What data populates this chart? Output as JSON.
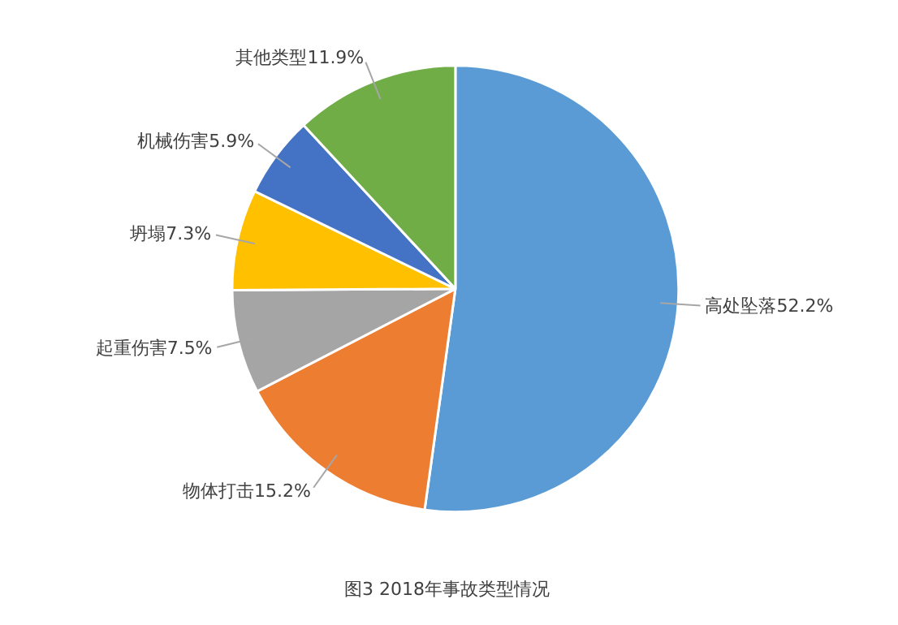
{
  "chart_data": {
    "type": "pie",
    "title": "图3  2018年事故类型情况",
    "categories": [
      "高处坠落",
      "物体打击",
      "起重伤害",
      "坍塌",
      "机械伤害",
      "其他类型"
    ],
    "values": [
      52.2,
      15.2,
      7.5,
      7.3,
      5.9,
      11.9
    ],
    "value_labels": [
      "52.2%",
      "15.2%",
      "7.5%",
      "7.3%",
      "5.9%",
      "11.9%"
    ],
    "colors": [
      "#5b9bd5",
      "#ed7d31",
      "#a5a5a5",
      "#ffc000",
      "#4472c4",
      "#70ad47"
    ]
  }
}
